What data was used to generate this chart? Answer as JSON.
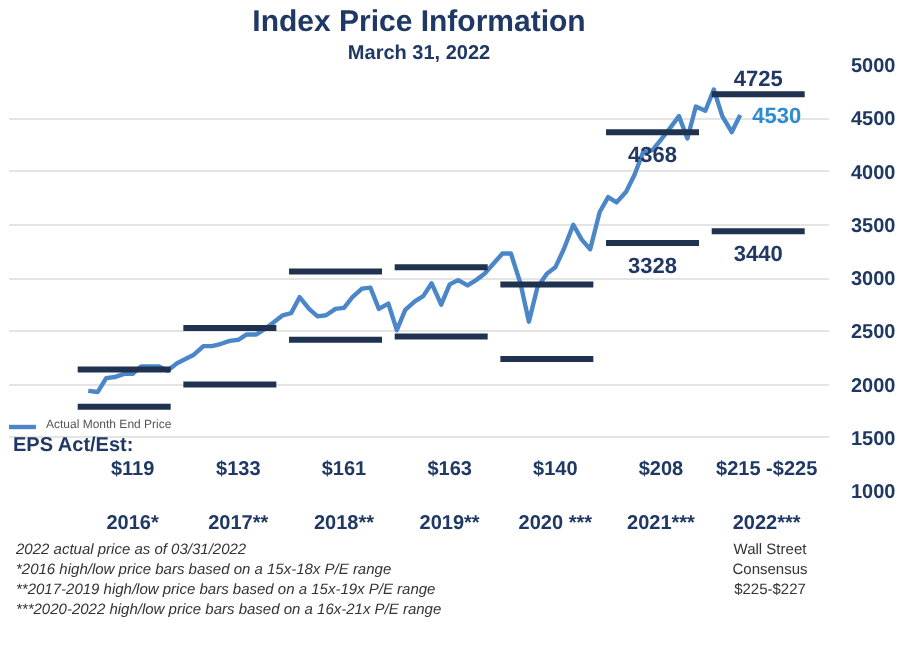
{
  "chart_data": {
    "type": "line",
    "title": "Index Price Information",
    "subtitle": "March 31, 2022",
    "xlim": [
      2015.33,
      2023.09
    ],
    "ylim": [
      1000,
      5000
    ],
    "xticks": [
      {
        "value": 2016.5,
        "label": "2016*"
      },
      {
        "value": 2017.5,
        "label": "2017**"
      },
      {
        "value": 2018.5,
        "label": "2018**"
      },
      {
        "value": 2019.5,
        "label": "2019**"
      },
      {
        "value": 2020.5,
        "label": "2020 ***"
      },
      {
        "value": 2021.5,
        "label": "2021***"
      },
      {
        "value": 2022.5,
        "label": "2022***"
      }
    ],
    "yticks": [
      1000,
      1500,
      2000,
      2500,
      3000,
      3500,
      4000,
      4500,
      5000
    ],
    "grid": "y",
    "legend": "bottom left",
    "marker": "none",
    "line_style": "solid",
    "series": [
      {
        "name": "Actual Month End Price",
        "color": "#4a86c8",
        "x": [
          2016.08,
          2016.17,
          2016.25,
          2016.33,
          2016.42,
          2016.5,
          2016.58,
          2016.67,
          2016.75,
          2016.83,
          2016.92,
          2017.0,
          2017.08,
          2017.17,
          2017.25,
          2017.33,
          2017.42,
          2017.5,
          2017.58,
          2017.67,
          2017.75,
          2017.83,
          2017.92,
          2018.0,
          2018.08,
          2018.17,
          2018.25,
          2018.33,
          2018.42,
          2018.5,
          2018.58,
          2018.67,
          2018.75,
          2018.83,
          2018.92,
          2019.0,
          2019.08,
          2019.17,
          2019.25,
          2019.33,
          2019.42,
          2019.5,
          2019.58,
          2019.67,
          2019.75,
          2019.83,
          2019.92,
          2020.0,
          2020.08,
          2020.17,
          2020.25,
          2020.33,
          2020.42,
          2020.5,
          2020.58,
          2020.67,
          2020.75,
          2020.83,
          2020.92,
          2021.0,
          2021.08,
          2021.17,
          2021.25,
          2021.33,
          2021.42,
          2021.5,
          2021.58,
          2021.67,
          2021.75,
          2021.83,
          2021.92,
          2022.0,
          2022.08,
          2022.17,
          2022.25
        ],
        "values": [
          1940,
          1930,
          2060,
          2070,
          2100,
          2100,
          2170,
          2170,
          2170,
          2130,
          2200,
          2240,
          2280,
          2360,
          2360,
          2380,
          2410,
          2420,
          2470,
          2470,
          2520,
          2580,
          2650,
          2670,
          2820,
          2710,
          2640,
          2650,
          2710,
          2720,
          2820,
          2900,
          2910,
          2710,
          2760,
          2510,
          2700,
          2780,
          2830,
          2950,
          2750,
          2940,
          2980,
          2930,
          2980,
          3040,
          3140,
          3230,
          3230,
          2950,
          2590,
          2910,
          3040,
          3100,
          3270,
          3500,
          3360,
          3270,
          3620,
          3760,
          3710,
          3810,
          3970,
          4180,
          4200,
          4300,
          4400,
          4520,
          4310,
          4610,
          4570,
          4770,
          4520,
          4370,
          4530
        ],
        "value_labels": [
          null,
          null,
          null,
          null,
          null,
          null,
          null,
          null,
          null,
          null,
          null,
          null,
          null,
          null,
          null,
          null,
          null,
          null,
          null,
          null,
          null,
          null,
          null,
          null,
          null,
          null,
          null,
          null,
          null,
          null,
          null,
          null,
          null,
          null,
          null,
          null,
          null,
          null,
          null,
          null,
          null,
          null,
          null,
          null,
          null,
          null,
          null,
          null,
          null,
          null,
          null,
          null,
          null,
          null,
          null,
          null,
          null,
          null,
          null,
          null,
          null,
          null,
          null,
          null,
          null,
          null,
          null,
          null,
          null,
          null,
          null,
          null,
          null,
          null,
          "4530"
        ]
      },
      {
        "color": "#1f3350",
        "x": [
          2015.98,
          2016.86
        ],
        "values": [
          2140,
          2140
        ]
      },
      {
        "color": "#1f3350",
        "x": [
          2015.98,
          2016.86
        ],
        "values": [
          1790,
          1790
        ]
      },
      {
        "color": "#1f3350",
        "x": [
          2016.98,
          2017.86
        ],
        "values": [
          2530,
          2530
        ]
      },
      {
        "color": "#1f3350",
        "x": [
          2016.98,
          2017.86
        ],
        "values": [
          2000,
          2000
        ]
      },
      {
        "color": "#1f3350",
        "x": [
          2017.98,
          2018.86
        ],
        "values": [
          3060,
          3060
        ]
      },
      {
        "color": "#1f3350",
        "x": [
          2017.98,
          2018.86
        ],
        "values": [
          2420,
          2420
        ]
      },
      {
        "color": "#1f3350",
        "x": [
          2018.98,
          2019.86
        ],
        "values": [
          3100,
          3100
        ]
      },
      {
        "color": "#1f3350",
        "x": [
          2018.98,
          2019.86
        ],
        "values": [
          2450,
          2450
        ]
      },
      {
        "color": "#1f3350",
        "x": [
          2019.98,
          2020.86
        ],
        "values": [
          2940,
          2940
        ]
      },
      {
        "color": "#1f3350",
        "x": [
          2019.98,
          2020.86
        ],
        "values": [
          2240,
          2240
        ]
      },
      {
        "color": "#1f3350",
        "x": [
          2020.98,
          2021.86
        ],
        "values": [
          4368,
          4368
        ],
        "value_labels": [
          "4368",
          null
        ]
      },
      {
        "color": "#1f3350",
        "x": [
          2020.98,
          2021.86
        ],
        "values": [
          3328,
          3328
        ],
        "value_labels": [
          "3328",
          null
        ]
      },
      {
        "color": "#1f3350",
        "x": [
          2021.98,
          2022.86
        ],
        "values": [
          4725,
          4725
        ],
        "value_labels": [
          "4725",
          null
        ]
      },
      {
        "color": "#1f3350",
        "x": [
          2021.98,
          2022.86
        ],
        "values": [
          3440,
          3440
        ],
        "value_labels": [
          "3440",
          null
        ]
      }
    ],
    "annotations": [
      "EPS Act/Est:",
      "$119",
      "$133",
      "$161",
      "$163",
      "$140",
      "$208",
      "$215 -$225",
      "2022 actual price as of 03/31/2022",
      "*2016 high/low price bars based on a 15x-18x P/E range",
      "**2017-2019 high/low price bars based on a 15x-19x P/E range",
      "***2020-2022 high/low price bars based on a 16x-21x P/E range",
      "Wall Street\nConsensus\n$225-$227"
    ]
  }
}
